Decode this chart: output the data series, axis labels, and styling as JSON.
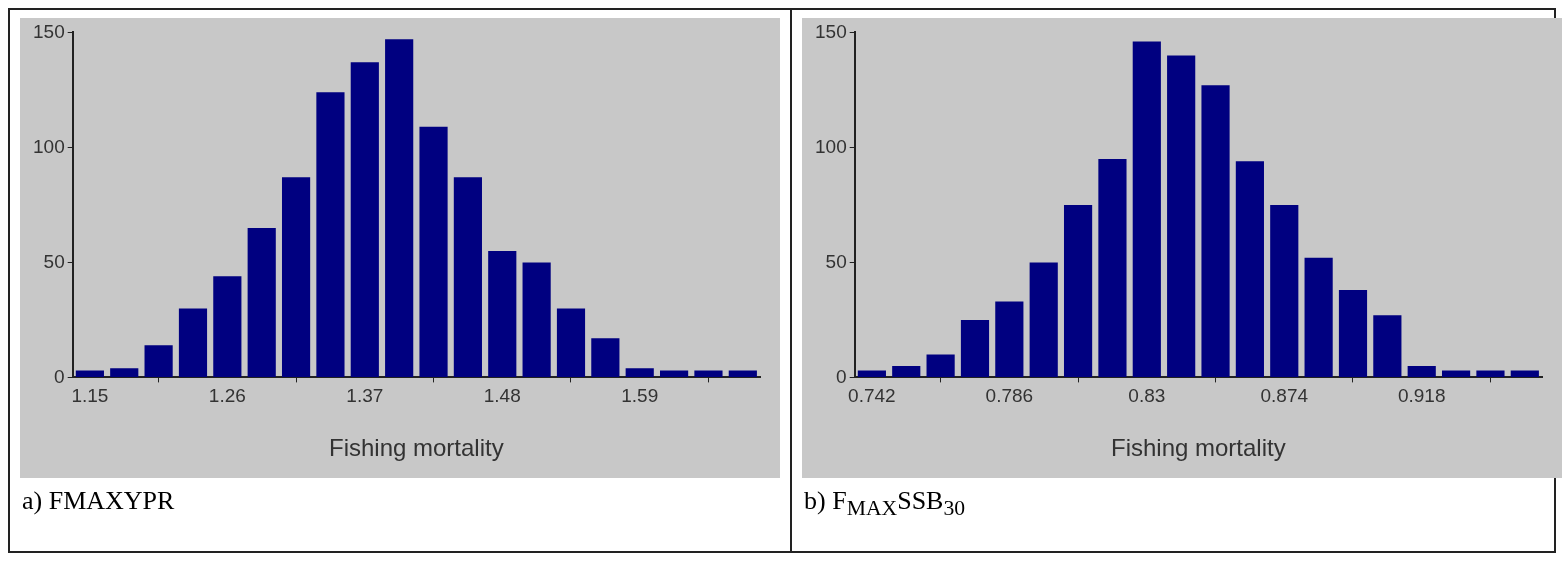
{
  "chart_data": [
    {
      "type": "histogram",
      "xlabel": "Fishing mortality",
      "annotations": [
        "a) FMAXYPR"
      ],
      "color": "#000080",
      "bins": [
        1.13625,
        1.16375,
        1.19125,
        1.21875,
        1.24625,
        1.27375,
        1.30125,
        1.32875,
        1.35625,
        1.38375,
        1.41125,
        1.43875,
        1.46625,
        1.49375,
        1.52125,
        1.54875,
        1.57625,
        1.60375,
        1.63125,
        1.65875,
        1.68625
      ],
      "values": [
        3,
        4,
        14,
        30,
        44,
        65,
        87,
        124,
        137,
        147,
        109,
        87,
        55,
        50,
        30,
        17,
        4,
        3,
        3,
        3
      ],
      "xlim": [
        1.13625,
        1.68625
      ],
      "xticks": [
        1.15,
        1.26,
        1.37,
        1.48,
        1.59
      ],
      "ylim": [
        0,
        150
      ],
      "yticks": [
        0,
        50,
        100,
        150
      ]
    },
    {
      "type": "histogram",
      "xlabel": "Fishing mortality",
      "annotations": [
        "b) F$_{MAX}$SSB$_{30}$"
      ],
      "color": "#000080",
      "bins": [
        0.7365,
        0.7475,
        0.7585,
        0.7695,
        0.7805,
        0.7915,
        0.8025,
        0.8135,
        0.8245,
        0.8355,
        0.8465,
        0.8575,
        0.8685,
        0.8795,
        0.8905,
        0.9015,
        0.9125,
        0.9235,
        0.9345,
        0.9455,
        0.9565
      ],
      "values": [
        3,
        5,
        10,
        25,
        33,
        50,
        75,
        95,
        146,
        140,
        127,
        94,
        75,
        52,
        38,
        27,
        5,
        3,
        3,
        3
      ],
      "xlim": [
        0.7365,
        0.9565
      ],
      "xticks": [
        0.742,
        0.786,
        0.83,
        0.874,
        0.918
      ],
      "ylim": [
        0,
        150
      ],
      "yticks": [
        0,
        50,
        100,
        150
      ]
    }
  ]
}
